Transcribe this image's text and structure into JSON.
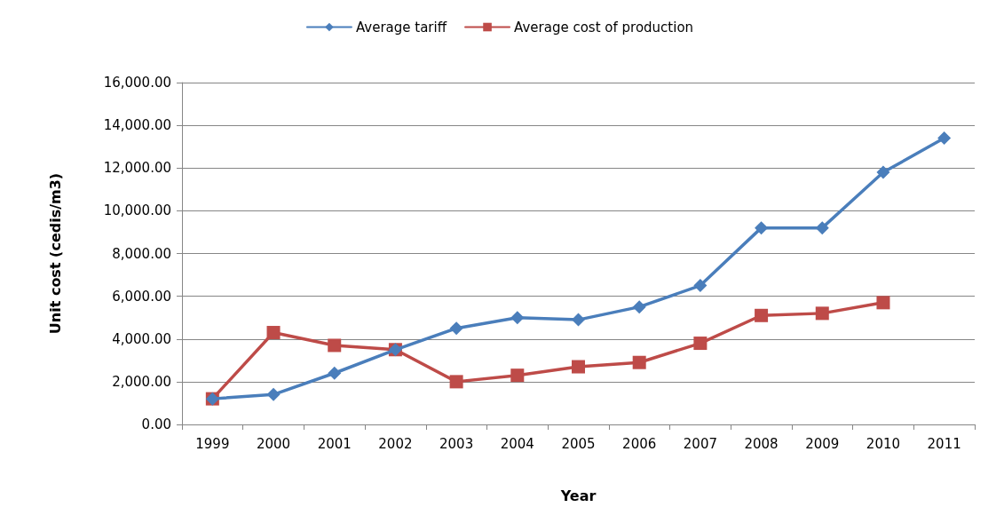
{
  "chart_data": {
    "type": "line",
    "xlabel": "Year",
    "ylabel": "Unit cost (cedis/m3)",
    "categories": [
      "1999",
      "2000",
      "2001",
      "2002",
      "2003",
      "2004",
      "2005",
      "2006",
      "2007",
      "2008",
      "2009",
      "2010",
      "2011"
    ],
    "series": [
      {
        "name": "Average tariff",
        "color": "#4a7ebb",
        "marker": "diamond",
        "values": [
          1200,
          1400,
          2400,
          3500,
          4500,
          5000,
          4900,
          5500,
          6500,
          9200,
          9200,
          11800,
          13400
        ]
      },
      {
        "name": "Average cost of production",
        "color": "#be4b48",
        "marker": "square",
        "values": [
          1200,
          4300,
          3700,
          3500,
          2000,
          2300,
          2700,
          2900,
          3800,
          5100,
          5200,
          5700,
          null
        ]
      }
    ],
    "ylim": [
      0,
      16000
    ],
    "yticks": [
      {
        "value": 0,
        "label": "0.00"
      },
      {
        "value": 2000,
        "label": "2,000.00"
      },
      {
        "value": 4000,
        "label": "4,000.00"
      },
      {
        "value": 6000,
        "label": "6,000.00"
      },
      {
        "value": 8000,
        "label": "8,000.00"
      },
      {
        "value": 10000,
        "label": "10,000.00"
      },
      {
        "value": 12000,
        "label": "12,000.00"
      },
      {
        "value": 14000,
        "label": "14,000.00"
      },
      {
        "value": 16000,
        "label": "16,000.00"
      }
    ],
    "grid": "y",
    "legend": "top",
    "line_style": "solid"
  }
}
